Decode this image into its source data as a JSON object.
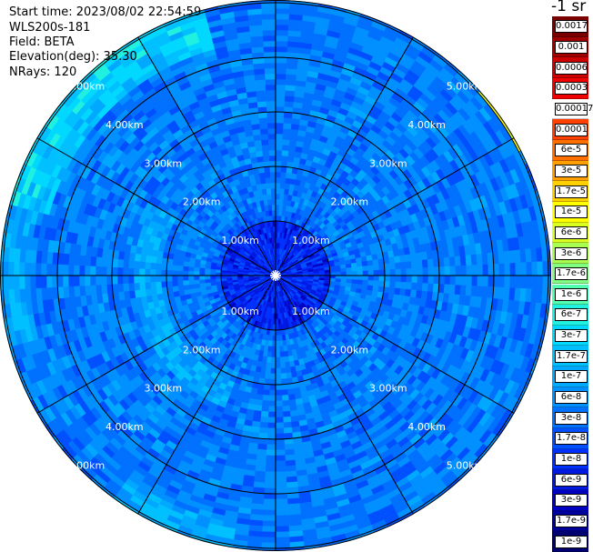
{
  "info": {
    "start_time": "Start time: 2023/08/02 22:54:59",
    "instrument": "WLS200s-181",
    "field": "Field: BETA",
    "elevation": "Elevation(deg): 35.30",
    "nrays": "NRays: 120"
  },
  "colorbar": {
    "title": "-1 sr",
    "labels": [
      "0.0017",
      "0.001",
      "0.0006",
      "0.0003",
      "0.00017",
      "0.0001",
      "6e-5",
      "3e-5",
      "1.7e-5",
      "1e-5",
      "6e-6",
      "3e-6",
      "1.7e-6",
      "1e-6",
      "6e-7",
      "3e-7",
      "1.7e-7",
      "1e-7",
      "6e-8",
      "3e-8",
      "1.7e-8",
      "1e-8",
      "6e-9",
      "3e-9",
      "1.7e-9",
      "1e-9"
    ],
    "colors": [
      "#7a0000",
      "#a00000",
      "#cc0000",
      "#f00000",
      "#ffffff",
      "#ff4000",
      "#ff7000",
      "#ffa000",
      "#ffd000",
      "#ffff00",
      "#d8ff20",
      "#a8ff50",
      "#80ff80",
      "#50ffb0",
      "#20f0e0",
      "#00d8ff",
      "#00c0ff",
      "#00a8ff",
      "#0090ff",
      "#0070ff",
      "#0050ff",
      "#0030ff",
      "#0018e0",
      "#0000c0",
      "#00009a",
      "#000070"
    ]
  },
  "chart_data": {
    "type": "heatmap",
    "projection": "polar (PPI scan)",
    "field": "BETA",
    "n_rays": 120,
    "range_rings_km": [
      1,
      2,
      3,
      4,
      5
    ],
    "range_labels": [
      "1.00km",
      "2.00km",
      "3.00km",
      "4.00km",
      "5.00km"
    ],
    "spoke_step_deg": 30,
    "colorbar_scale": "log",
    "value_range": [
      1e-09,
      0.0017
    ],
    "typical_values": {
      "near_center_0_1km": "1e-8",
      "ring_1_2km": "3e-8",
      "ring_2_5km": "3e-8 to 6e-8",
      "north_west_edge_5km": "1.7e-7 to 6e-7",
      "north_east_edge_5km": "3e-6 to 1e-5"
    }
  }
}
